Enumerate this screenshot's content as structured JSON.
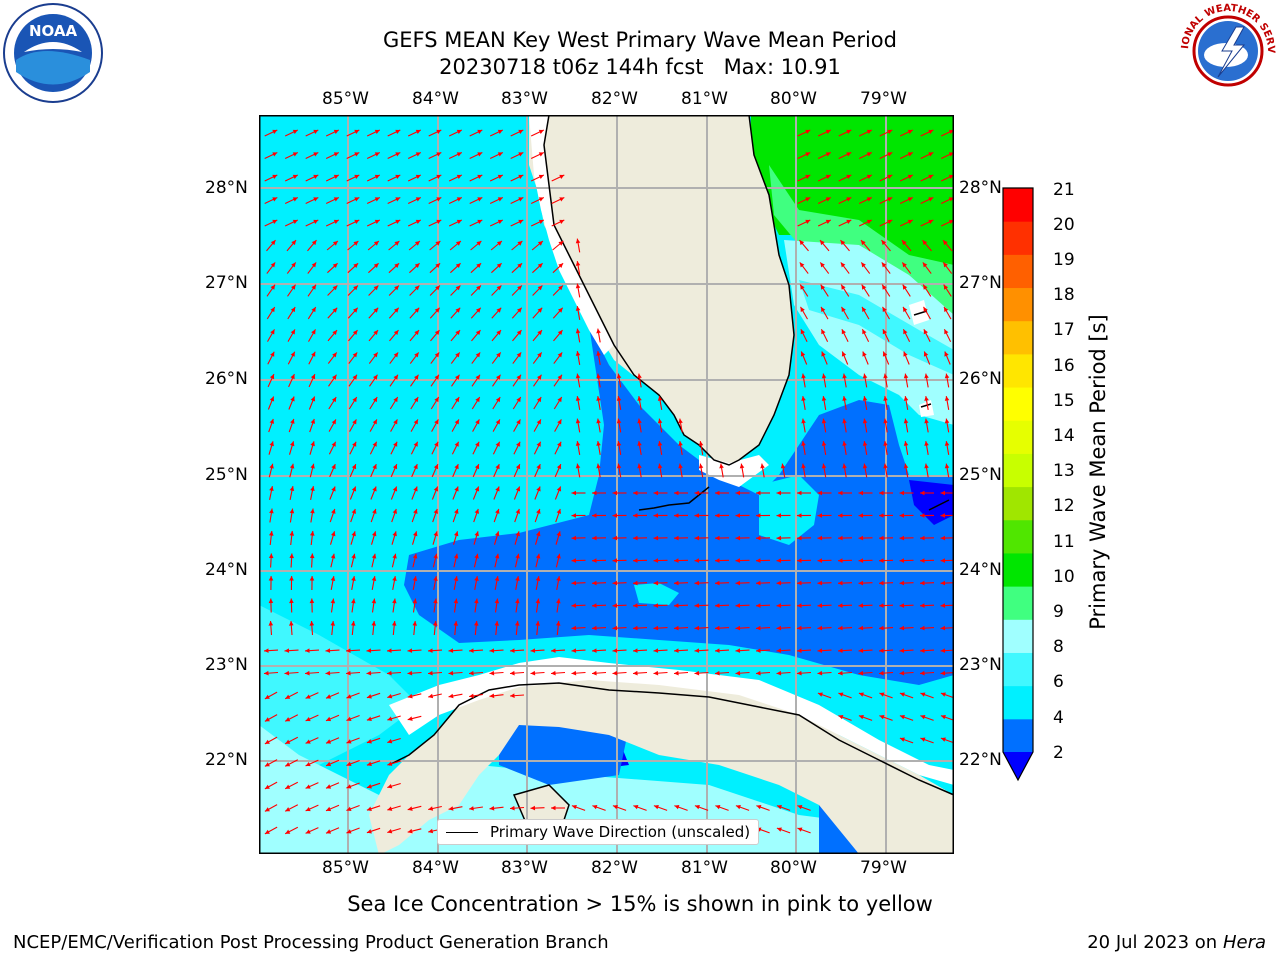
{
  "header": {
    "title_line1": "GEFS MEAN Key West Primary Wave Mean Period",
    "title_line2": "20230718 t06z 144h fcst   Max: 10.91"
  },
  "logos": {
    "left": {
      "name": "noaa-logo",
      "text": "NOAA"
    },
    "right": {
      "name": "nws-logo",
      "text": "NATIONAL WEATHER SERVICE"
    }
  },
  "map": {
    "lon_labels": [
      "85°W",
      "84°W",
      "83°W",
      "82°W",
      "81°W",
      "80°W",
      "79°W"
    ],
    "lat_labels": [
      "28°N",
      "27°N",
      "26°N",
      "25°N",
      "24°N",
      "23°N",
      "22°N"
    ],
    "legend_label": "Primary Wave Direction (unscaled)",
    "arrow_color": "#ff0000",
    "land_color": "#eeecdc",
    "gridline_color": "#b0b0b0"
  },
  "colorbar": {
    "label": "Primary Wave Mean Period [s]",
    "ticks": [
      "21",
      "20",
      "19",
      "18",
      "17",
      "16",
      "15",
      "14",
      "13",
      "12",
      "11",
      "10",
      "9",
      "8",
      "6",
      "4",
      "2"
    ],
    "colors_bottom_to_top": [
      "#0070ff",
      "#00f0ff",
      "#40f8ff",
      "#a0ffff",
      "#40ff80",
      "#00e600",
      "#50e600",
      "#a0e600",
      "#c8ff00",
      "#e6ff00",
      "#ffff00",
      "#ffe600",
      "#ffc000",
      "#ff9000",
      "#ff6000",
      "#ff3000",
      "#ff0000"
    ],
    "extend_color": "#0000ff"
  },
  "caption": "Sea Ice Concentration > 15% is shown in pink to yellow",
  "footer": {
    "left": "NCEP/EMC/Verification Post Processing Product Generation Branch",
    "right_prefix": "20 Jul 2023 on ",
    "right_machine": "Hera"
  }
}
